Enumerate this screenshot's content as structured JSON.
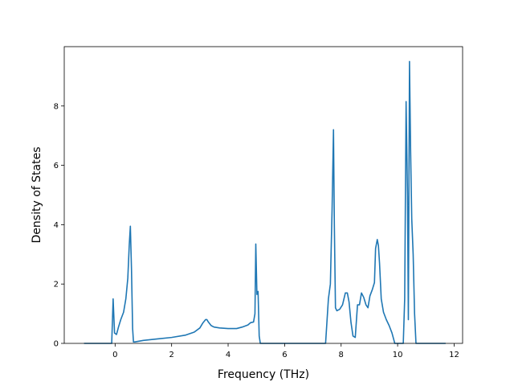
{
  "chart_data": {
    "type": "line",
    "title": "",
    "xlabel": "Frequency (THz)",
    "ylabel": "Density of States",
    "xlim": [
      -1.8,
      12.3
    ],
    "ylim": [
      0,
      10
    ],
    "xticks": [
      0,
      2,
      4,
      6,
      8,
      10,
      12
    ],
    "yticks": [
      0,
      2,
      4,
      6,
      8
    ],
    "grid": false,
    "legend": "none",
    "series": [
      {
        "color": "#1f77b4",
        "x": [
          -1.1,
          -0.12,
          -0.07,
          -0.02,
          0.05,
          0.12,
          0.2,
          0.3,
          0.38,
          0.45,
          0.5,
          0.54,
          0.58,
          0.62,
          0.65,
          0.7,
          1.0,
          1.5,
          2.0,
          2.5,
          2.8,
          3.0,
          3.1,
          3.2,
          3.25,
          3.3,
          3.4,
          3.5,
          3.7,
          4.0,
          4.3,
          4.5,
          4.7,
          4.8,
          4.9,
          4.95,
          4.98,
          5.02,
          5.06,
          5.1,
          5.14,
          5.17,
          5.2,
          6.0,
          7.0,
          7.45,
          7.55,
          7.62,
          7.68,
          7.73,
          7.76,
          7.8,
          7.85,
          7.95,
          8.05,
          8.15,
          8.22,
          8.28,
          8.35,
          8.42,
          8.5,
          8.58,
          8.65,
          8.72,
          8.8,
          8.88,
          8.95,
          9.02,
          9.1,
          9.18,
          9.22,
          9.28,
          9.32,
          9.36,
          9.42,
          9.5,
          9.6,
          9.7,
          9.8,
          9.9,
          9.95,
          10.2,
          10.25,
          10.3,
          10.35,
          10.38,
          10.42,
          10.46,
          10.5,
          10.55,
          10.6,
          10.65,
          10.7,
          11.7
        ],
        "y": [
          0,
          0,
          1.5,
          0.35,
          0.3,
          0.55,
          0.8,
          1.05,
          1.5,
          2.2,
          3.3,
          3.95,
          2.5,
          0.5,
          0.05,
          0.05,
          0.1,
          0.15,
          0.2,
          0.28,
          0.38,
          0.52,
          0.68,
          0.8,
          0.8,
          0.72,
          0.6,
          0.55,
          0.52,
          0.5,
          0.5,
          0.55,
          0.62,
          0.7,
          0.72,
          1.0,
          3.35,
          1.65,
          1.75,
          0.25,
          0,
          0,
          0,
          0,
          0,
          0,
          1.5,
          2.0,
          4.5,
          7.2,
          4.0,
          1.2,
          1.1,
          1.15,
          1.3,
          1.7,
          1.7,
          1.4,
          0.7,
          0.25,
          0.2,
          1.3,
          1.3,
          1.7,
          1.55,
          1.3,
          1.2,
          1.6,
          1.8,
          2.05,
          3.2,
          3.5,
          3.3,
          2.7,
          1.5,
          1.05,
          0.8,
          0.6,
          0.35,
          0,
          0,
          0,
          1.5,
          8.15,
          5.0,
          0.8,
          9.5,
          6.5,
          4.2,
          3.0,
          1.0,
          0,
          0,
          0
        ]
      }
    ]
  }
}
